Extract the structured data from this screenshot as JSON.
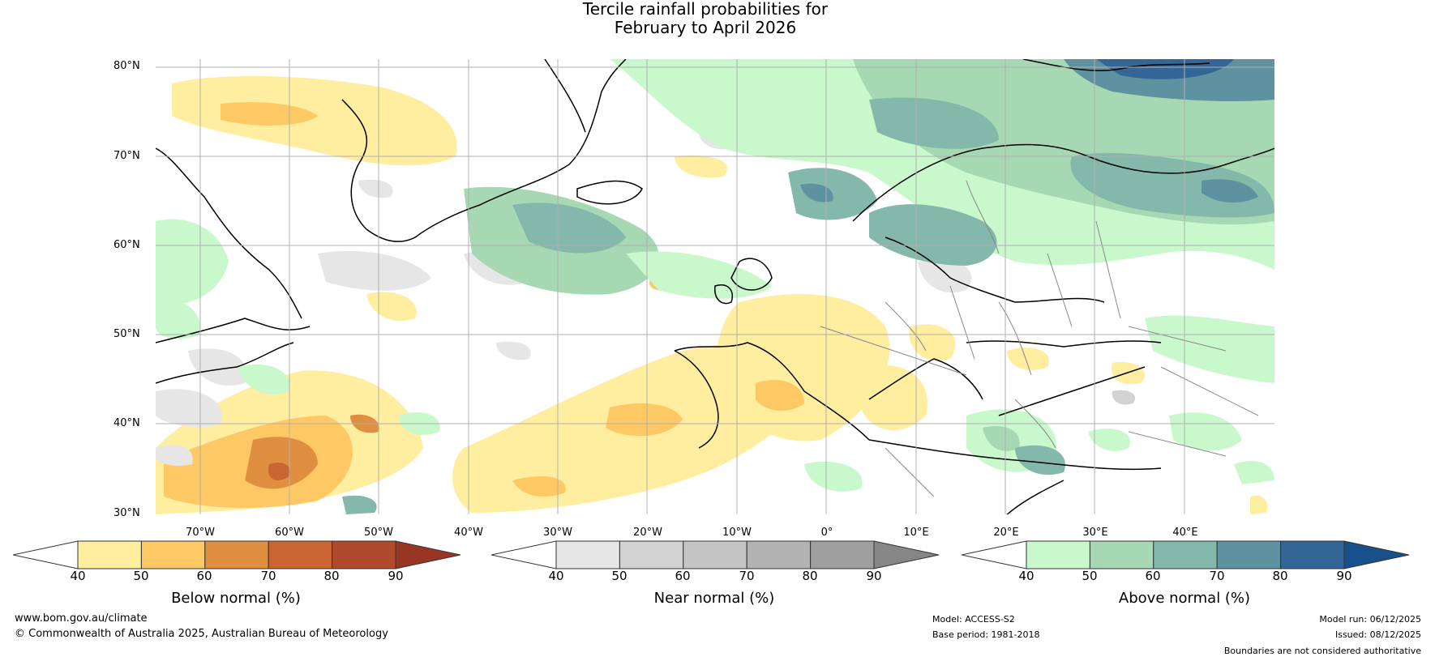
{
  "title": {
    "line1": "Tercile rainfall probabilities for",
    "line2": "February to April 2026"
  },
  "map": {
    "lat_labels": [
      "80°N",
      "70°N",
      "60°N",
      "50°N",
      "40°N",
      "30°N"
    ],
    "lon_labels": [
      "70°W",
      "60°W",
      "50°W",
      "40°W",
      "30°W",
      "20°W",
      "10°W",
      "0°",
      "10°E",
      "20°E",
      "30°E",
      "40°E"
    ]
  },
  "legend": {
    "below": {
      "label": "Below normal (%)",
      "ticks": [
        "40",
        "50",
        "60",
        "70",
        "80",
        "90"
      ],
      "colors": [
        "#ffeda0",
        "#fec965",
        "#e08f41",
        "#cb6533",
        "#af4a2c",
        "#983623"
      ]
    },
    "near": {
      "label": "Near normal (%)",
      "ticks": [
        "40",
        "50",
        "60",
        "70",
        "80",
        "90"
      ],
      "colors": [
        "#e6e6e6",
        "#d2d2d2",
        "#c4c4c4",
        "#b3b3b3",
        "#9f9f9f",
        "#868686"
      ]
    },
    "above": {
      "label": "Above normal (%)",
      "ticks": [
        "40",
        "50",
        "60",
        "70",
        "80",
        "90"
      ],
      "colors": [
        "#c8f8cb",
        "#a6d9b3",
        "#84b8aa",
        "#5f92a0",
        "#336697",
        "#17508a"
      ]
    }
  },
  "footer": {
    "website": "www.bom.gov.au/climate",
    "copyright": "© Commonwealth of Australia 2025, Australian Bureau of Meteorology",
    "model": "Model: ACCESS-S2",
    "base_period": "Base period: 1981-2018",
    "model_run": "Model run: 06/12/2025",
    "issued": "Issued: 08/12/2025",
    "disclaimer": "Boundaries are not considered authoritative"
  }
}
